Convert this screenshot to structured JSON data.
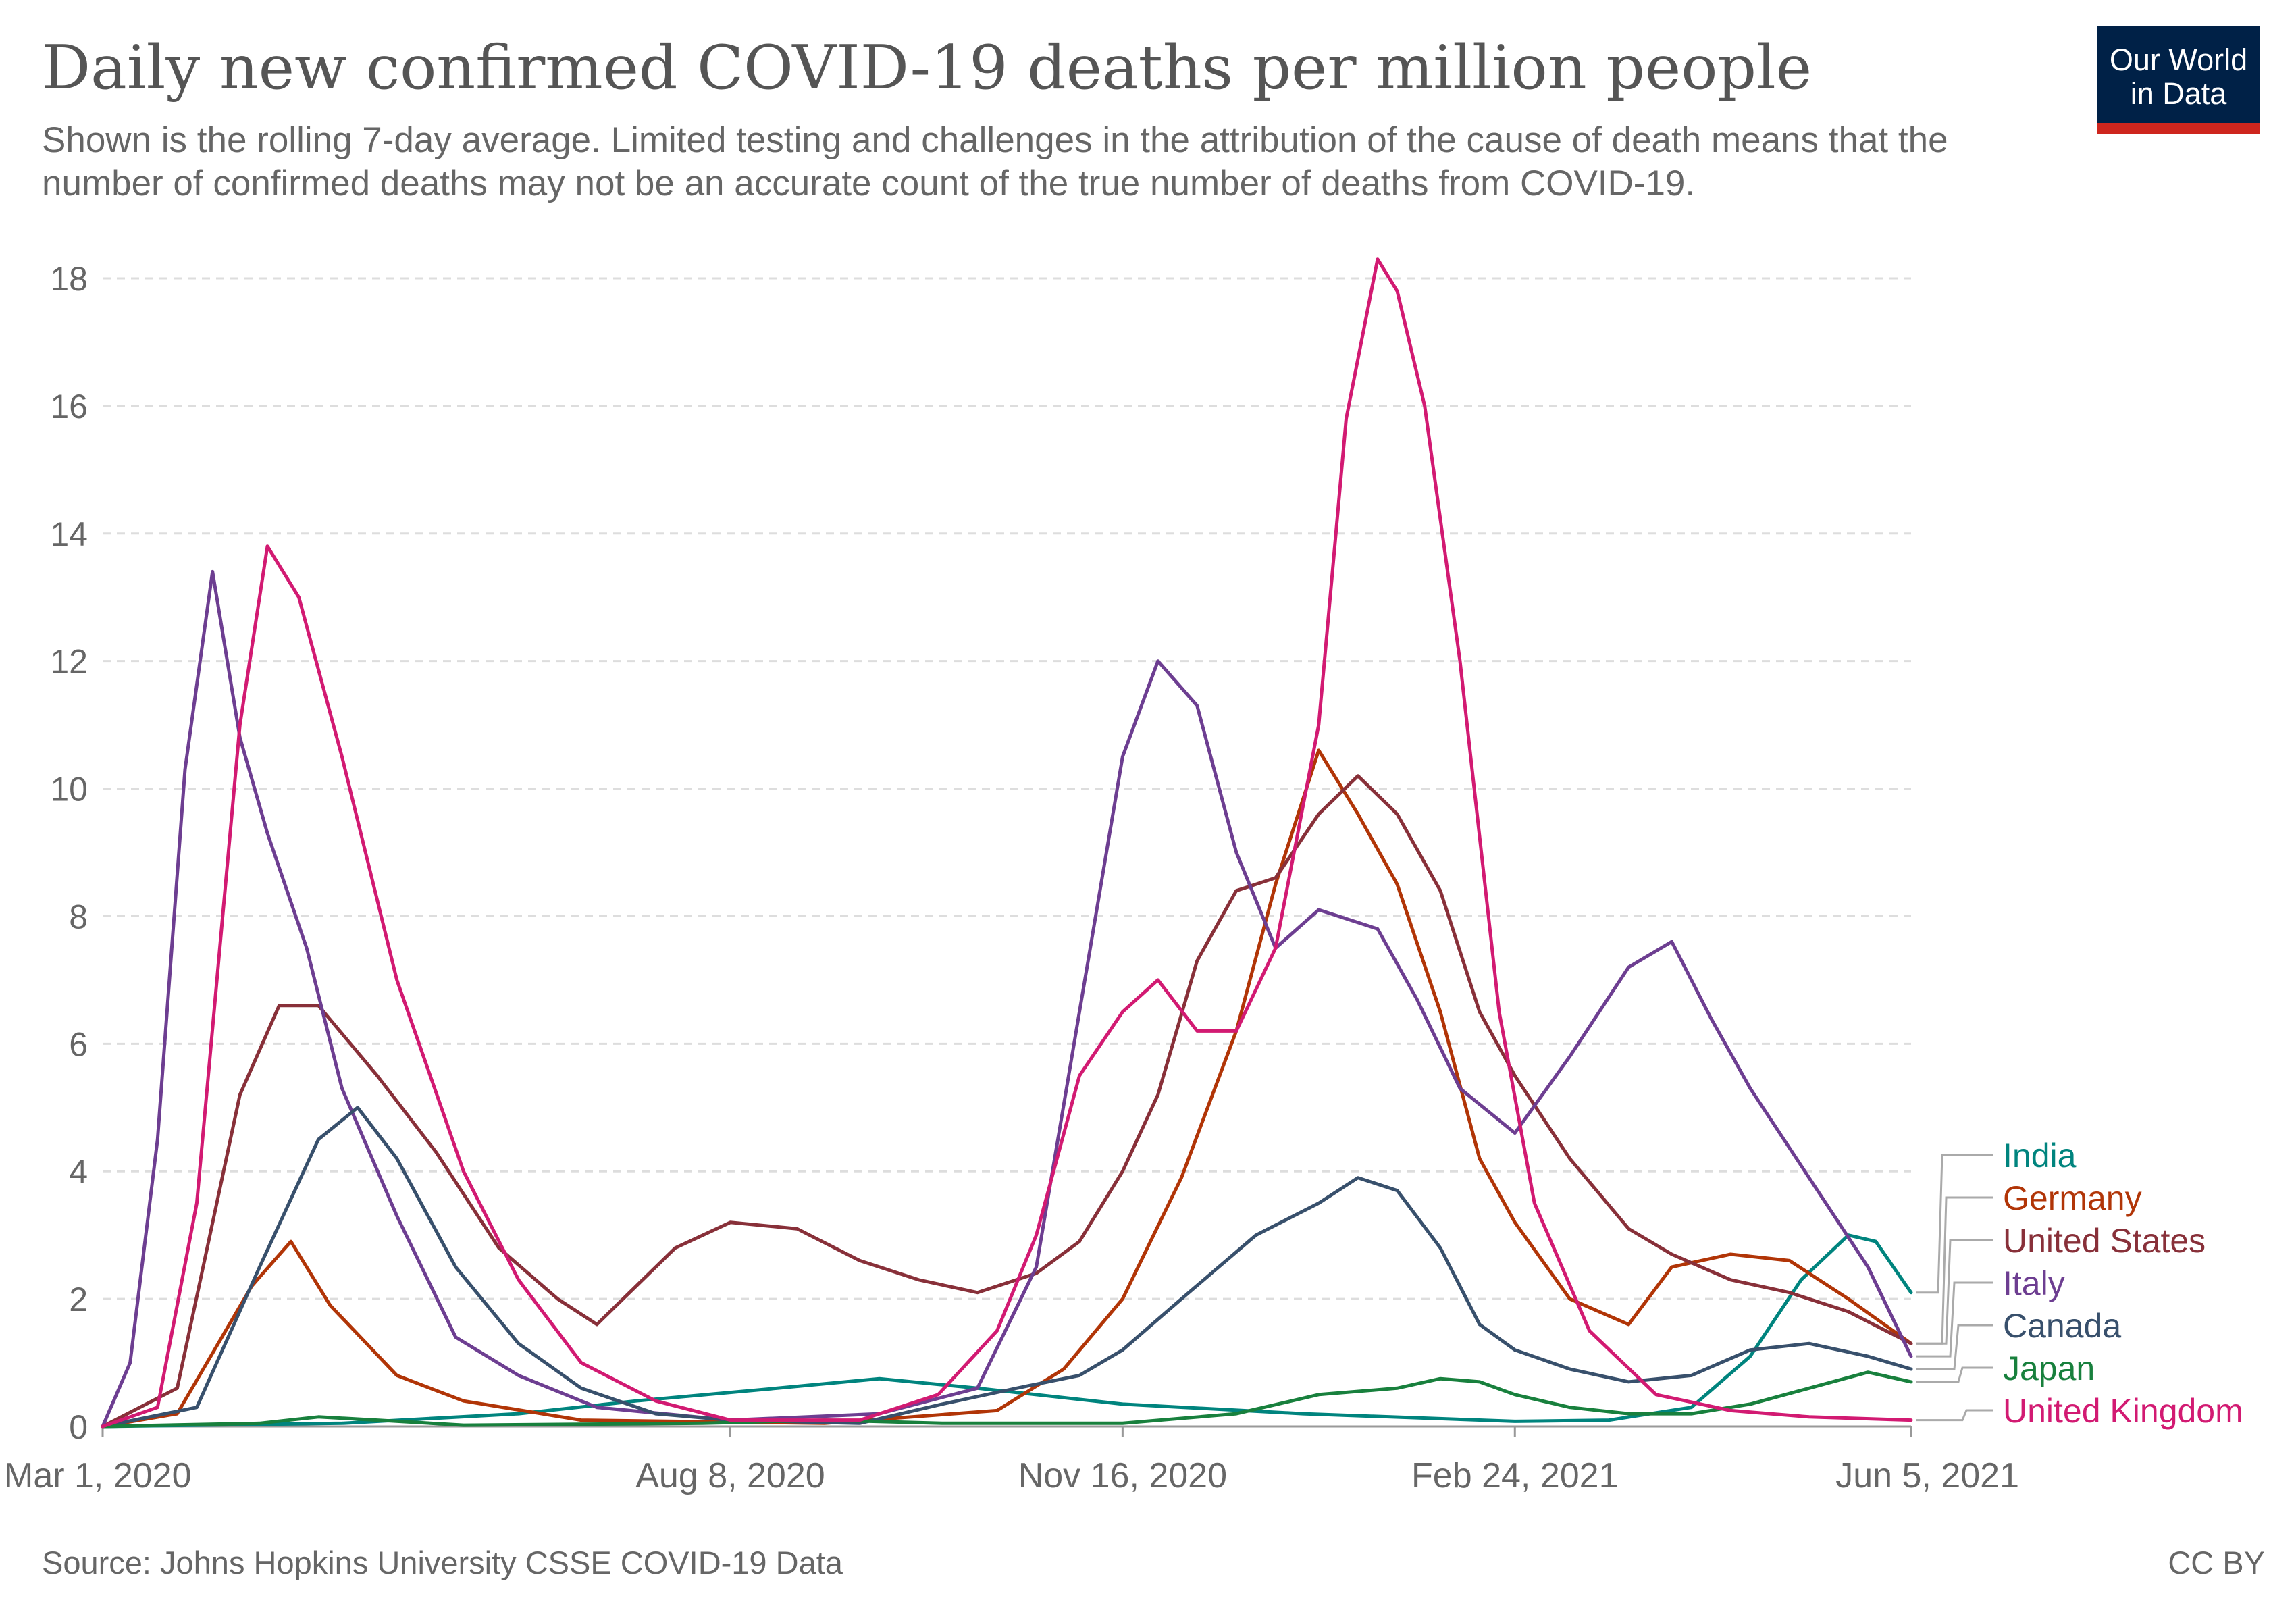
{
  "title": "Daily new confirmed COVID-19 deaths per million people",
  "subtitle": "Shown is the rolling 7-day average. Limited testing and challenges in the attribution of the cause of death means that the number of confirmed deaths may not be an accurate count of the true number of deaths from COVID-19.",
  "logo": {
    "line1": "Our World",
    "line2": "in Data"
  },
  "source": "Source: Johns Hopkins University CSSE COVID-19 Data",
  "license": "CC BY",
  "colors": {
    "India": "#00847e",
    "Germany": "#b13507",
    "United States": "#883039",
    "Italy": "#6d3e91",
    "Canada": "#38506c",
    "Japan": "#18803d",
    "United Kingdom": "#d21a72"
  },
  "chart_data": {
    "type": "line",
    "x_axis": {
      "type": "date",
      "start": "2020-03-01",
      "end": "2021-06-05",
      "ticks": [
        "2020-03-01",
        "2020-08-08",
        "2020-11-16",
        "2021-02-24",
        "2021-06-05"
      ],
      "tick_labels": [
        "Mar 1, 2020",
        "Aug 8, 2020",
        "Nov 16, 2020",
        "Feb 24, 2021",
        "Jun 5, 2021"
      ]
    },
    "y_axis": {
      "ylim": [
        0,
        18
      ],
      "ticks": [
        0,
        2,
        4,
        6,
        8,
        10,
        12,
        14,
        16,
        18
      ]
    },
    "grid": true,
    "legend": "right-end-labels",
    "series": [
      {
        "name": "India",
        "points": [
          [
            "2020-03-01",
            0
          ],
          [
            "2020-05-01",
            0.05
          ],
          [
            "2020-06-15",
            0.2
          ],
          [
            "2020-07-15",
            0.4
          ],
          [
            "2020-08-20",
            0.6
          ],
          [
            "2020-09-15",
            0.75
          ],
          [
            "2020-10-10",
            0.6
          ],
          [
            "2020-11-16",
            0.35
          ],
          [
            "2021-01-01",
            0.2
          ],
          [
            "2021-02-24",
            0.08
          ],
          [
            "2021-03-20",
            0.1
          ],
          [
            "2021-04-10",
            0.3
          ],
          [
            "2021-04-25",
            1.1
          ],
          [
            "2021-05-08",
            2.3
          ],
          [
            "2021-05-20",
            3.0
          ],
          [
            "2021-05-27",
            2.9
          ],
          [
            "2021-06-05",
            2.1
          ]
        ]
      },
      {
        "name": "Germany",
        "points": [
          [
            "2020-03-01",
            0
          ],
          [
            "2020-03-20",
            0.2
          ],
          [
            "2020-04-08",
            2.2
          ],
          [
            "2020-04-18",
            2.9
          ],
          [
            "2020-04-28",
            1.9
          ],
          [
            "2020-05-15",
            0.8
          ],
          [
            "2020-06-01",
            0.4
          ],
          [
            "2020-07-01",
            0.1
          ],
          [
            "2020-09-01",
            0.05
          ],
          [
            "2020-10-15",
            0.25
          ],
          [
            "2020-11-01",
            0.9
          ],
          [
            "2020-11-16",
            2.0
          ],
          [
            "2020-12-01",
            3.9
          ],
          [
            "2020-12-15",
            6.2
          ],
          [
            "2020-12-25",
            8.5
          ],
          [
            "2021-01-05",
            10.6
          ],
          [
            "2021-01-15",
            9.6
          ],
          [
            "2021-01-25",
            8.5
          ],
          [
            "2021-02-05",
            6.5
          ],
          [
            "2021-02-15",
            4.2
          ],
          [
            "2021-02-24",
            3.2
          ],
          [
            "2021-03-10",
            2.0
          ],
          [
            "2021-03-25",
            1.6
          ],
          [
            "2021-04-05",
            2.5
          ],
          [
            "2021-04-20",
            2.7
          ],
          [
            "2021-05-05",
            2.6
          ],
          [
            "2021-05-20",
            2.0
          ],
          [
            "2021-06-05",
            1.3
          ]
        ]
      },
      {
        "name": "United States",
        "points": [
          [
            "2020-03-01",
            0
          ],
          [
            "2020-03-20",
            0.6
          ],
          [
            "2020-04-05",
            5.2
          ],
          [
            "2020-04-15",
            6.6
          ],
          [
            "2020-04-25",
            6.6
          ],
          [
            "2020-05-10",
            5.5
          ],
          [
            "2020-05-25",
            4.3
          ],
          [
            "2020-06-10",
            2.8
          ],
          [
            "2020-06-25",
            2.0
          ],
          [
            "2020-07-05",
            1.6
          ],
          [
            "2020-07-15",
            2.2
          ],
          [
            "2020-07-25",
            2.8
          ],
          [
            "2020-08-08",
            3.2
          ],
          [
            "2020-08-25",
            3.1
          ],
          [
            "2020-09-10",
            2.6
          ],
          [
            "2020-09-25",
            2.3
          ],
          [
            "2020-10-10",
            2.1
          ],
          [
            "2020-10-25",
            2.4
          ],
          [
            "2020-11-05",
            2.9
          ],
          [
            "2020-11-16",
            4.0
          ],
          [
            "2020-11-25",
            5.2
          ],
          [
            "2020-12-05",
            7.3
          ],
          [
            "2020-12-15",
            8.4
          ],
          [
            "2020-12-25",
            8.6
          ],
          [
            "2021-01-05",
            9.6
          ],
          [
            "2021-01-15",
            10.2
          ],
          [
            "2021-01-25",
            9.6
          ],
          [
            "2021-02-05",
            8.4
          ],
          [
            "2021-02-15",
            6.5
          ],
          [
            "2021-02-24",
            5.5
          ],
          [
            "2021-03-10",
            4.2
          ],
          [
            "2021-03-25",
            3.1
          ],
          [
            "2021-04-05",
            2.7
          ],
          [
            "2021-04-20",
            2.3
          ],
          [
            "2021-05-05",
            2.1
          ],
          [
            "2021-05-20",
            1.8
          ],
          [
            "2021-06-05",
            1.3
          ]
        ]
      },
      {
        "name": "Italy",
        "points": [
          [
            "2020-03-01",
            0
          ],
          [
            "2020-03-08",
            1.0
          ],
          [
            "2020-03-15",
            4.5
          ],
          [
            "2020-03-22",
            10.3
          ],
          [
            "2020-03-29",
            13.4
          ],
          [
            "2020-04-05",
            10.8
          ],
          [
            "2020-04-12",
            9.3
          ],
          [
            "2020-04-22",
            7.5
          ],
          [
            "2020-05-01",
            5.3
          ],
          [
            "2020-05-15",
            3.3
          ],
          [
            "2020-05-30",
            1.4
          ],
          [
            "2020-06-15",
            0.8
          ],
          [
            "2020-07-05",
            0.3
          ],
          [
            "2020-08-08",
            0.1
          ],
          [
            "2020-09-15",
            0.2
          ],
          [
            "2020-10-10",
            0.6
          ],
          [
            "2020-10-25",
            2.5
          ],
          [
            "2020-11-05",
            6.5
          ],
          [
            "2020-11-16",
            10.5
          ],
          [
            "2020-11-25",
            12.0
          ],
          [
            "2020-12-05",
            11.3
          ],
          [
            "2020-12-15",
            9.0
          ],
          [
            "2020-12-25",
            7.5
          ],
          [
            "2021-01-05",
            8.1
          ],
          [
            "2021-01-20",
            7.8
          ],
          [
            "2021-01-30",
            6.7
          ],
          [
            "2021-02-10",
            5.3
          ],
          [
            "2021-02-24",
            4.6
          ],
          [
            "2021-03-10",
            5.8
          ],
          [
            "2021-03-25",
            7.2
          ],
          [
            "2021-04-05",
            7.6
          ],
          [
            "2021-04-15",
            6.4
          ],
          [
            "2021-04-25",
            5.3
          ],
          [
            "2021-05-10",
            3.9
          ],
          [
            "2021-05-25",
            2.5
          ],
          [
            "2021-06-05",
            1.1
          ]
        ]
      },
      {
        "name": "Canada",
        "points": [
          [
            "2020-03-01",
            0
          ],
          [
            "2020-03-25",
            0.3
          ],
          [
            "2020-04-10",
            2.5
          ],
          [
            "2020-04-25",
            4.5
          ],
          [
            "2020-05-05",
            5.0
          ],
          [
            "2020-05-15",
            4.2
          ],
          [
            "2020-05-30",
            2.5
          ],
          [
            "2020-06-15",
            1.3
          ],
          [
            "2020-07-01",
            0.6
          ],
          [
            "2020-07-20",
            0.2
          ],
          [
            "2020-08-08",
            0.1
          ],
          [
            "2020-09-10",
            0.05
          ],
          [
            "2020-10-01",
            0.35
          ],
          [
            "2020-10-20",
            0.6
          ],
          [
            "2020-11-05",
            0.8
          ],
          [
            "2020-11-16",
            1.2
          ],
          [
            "2020-12-01",
            2.0
          ],
          [
            "2020-12-20",
            3.0
          ],
          [
            "2021-01-05",
            3.5
          ],
          [
            "2021-01-15",
            3.9
          ],
          [
            "2021-01-25",
            3.7
          ],
          [
            "2021-02-05",
            2.8
          ],
          [
            "2021-02-15",
            1.6
          ],
          [
            "2021-02-24",
            1.2
          ],
          [
            "2021-03-10",
            0.9
          ],
          [
            "2021-03-25",
            0.7
          ],
          [
            "2021-04-10",
            0.8
          ],
          [
            "2021-04-25",
            1.2
          ],
          [
            "2021-05-10",
            1.3
          ],
          [
            "2021-05-25",
            1.1
          ],
          [
            "2021-06-05",
            0.9
          ]
        ]
      },
      {
        "name": "Japan",
        "points": [
          [
            "2020-03-01",
            0
          ],
          [
            "2020-04-10",
            0.05
          ],
          [
            "2020-04-25",
            0.15
          ],
          [
            "2020-05-10",
            0.1
          ],
          [
            "2020-06-01",
            0.02
          ],
          [
            "2020-08-01",
            0.05
          ],
          [
            "2020-09-01",
            0.1
          ],
          [
            "2020-10-01",
            0.05
          ],
          [
            "2020-11-16",
            0.05
          ],
          [
            "2020-12-15",
            0.2
          ],
          [
            "2021-01-05",
            0.5
          ],
          [
            "2021-01-25",
            0.6
          ],
          [
            "2021-02-05",
            0.75
          ],
          [
            "2021-02-15",
            0.7
          ],
          [
            "2021-02-24",
            0.5
          ],
          [
            "2021-03-10",
            0.3
          ],
          [
            "2021-03-25",
            0.2
          ],
          [
            "2021-04-10",
            0.2
          ],
          [
            "2021-04-25",
            0.35
          ],
          [
            "2021-05-10",
            0.6
          ],
          [
            "2021-05-25",
            0.85
          ],
          [
            "2021-06-05",
            0.7
          ]
        ]
      },
      {
        "name": "United Kingdom",
        "points": [
          [
            "2020-03-01",
            0
          ],
          [
            "2020-03-15",
            0.3
          ],
          [
            "2020-03-25",
            3.5
          ],
          [
            "2020-04-05",
            11.0
          ],
          [
            "2020-04-12",
            13.8
          ],
          [
            "2020-04-20",
            13.0
          ],
          [
            "2020-05-01",
            10.5
          ],
          [
            "2020-05-15",
            7.0
          ],
          [
            "2020-06-01",
            4.0
          ],
          [
            "2020-06-15",
            2.3
          ],
          [
            "2020-07-01",
            1.0
          ],
          [
            "2020-07-20",
            0.4
          ],
          [
            "2020-08-08",
            0.1
          ],
          [
            "2020-09-10",
            0.1
          ],
          [
            "2020-09-30",
            0.5
          ],
          [
            "2020-10-15",
            1.5
          ],
          [
            "2020-10-25",
            3.0
          ],
          [
            "2020-11-05",
            5.5
          ],
          [
            "2020-11-16",
            6.5
          ],
          [
            "2020-11-25",
            7.0
          ],
          [
            "2020-12-05",
            6.2
          ],
          [
            "2020-12-15",
            6.2
          ],
          [
            "2020-12-25",
            7.5
          ],
          [
            "2021-01-05",
            11.0
          ],
          [
            "2021-01-12",
            15.8
          ],
          [
            "2021-01-20",
            18.3
          ],
          [
            "2021-01-25",
            17.8
          ],
          [
            "2021-02-01",
            16.0
          ],
          [
            "2021-02-10",
            12.0
          ],
          [
            "2021-02-20",
            6.5
          ],
          [
            "2021-03-01",
            3.5
          ],
          [
            "2021-03-15",
            1.5
          ],
          [
            "2021-04-01",
            0.5
          ],
          [
            "2021-04-20",
            0.25
          ],
          [
            "2021-05-10",
            0.15
          ],
          [
            "2021-06-05",
            0.1
          ]
        ]
      }
    ]
  }
}
